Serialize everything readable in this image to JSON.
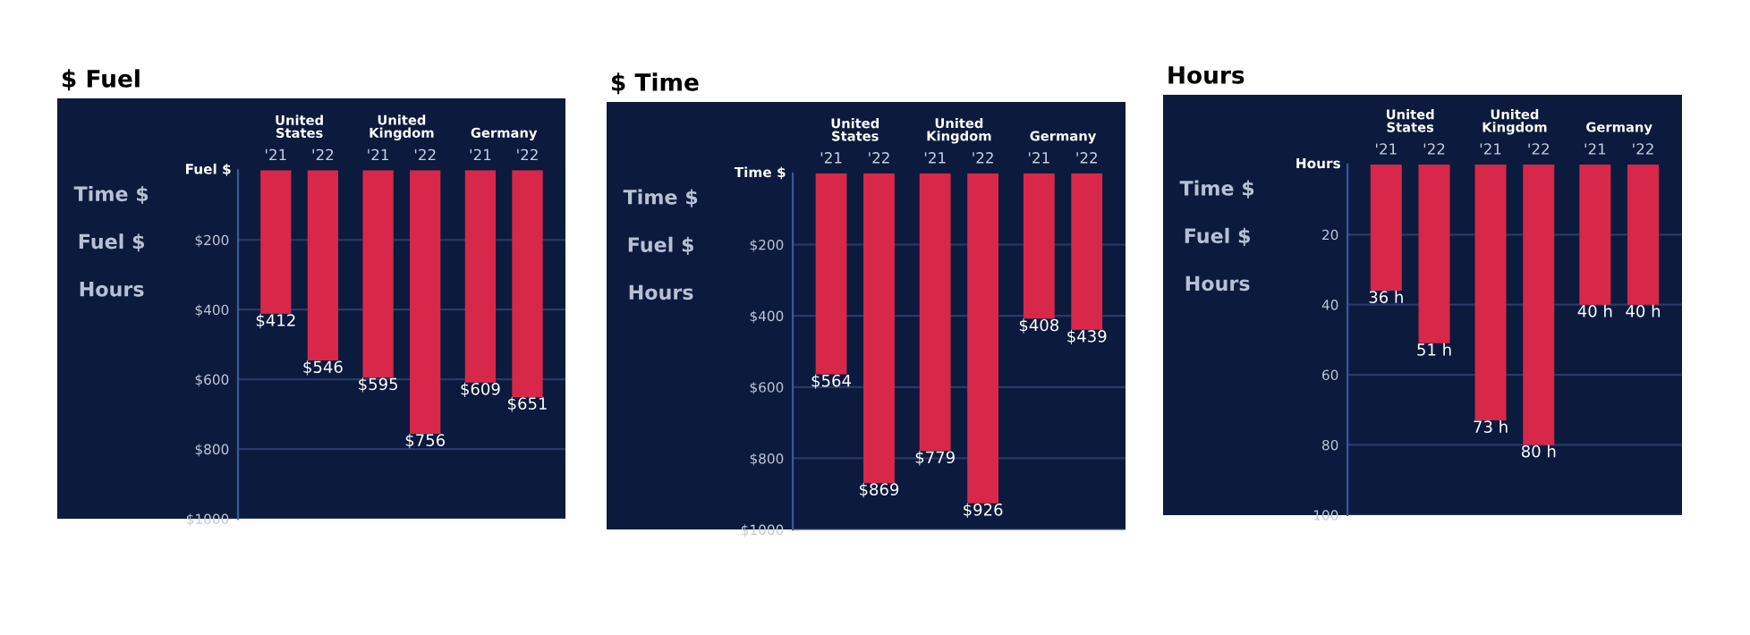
{
  "chart_data": [
    {
      "type": "bar",
      "title": "$ Fuel",
      "ylabel": "Fuel $",
      "categories": [
        "United States",
        "United Kingdom",
        "Germany"
      ],
      "series": [
        {
          "name": "'21",
          "color": "#d8284a",
          "values": [
            412,
            595,
            609
          ],
          "value_labels": [
            "$412",
            "$595",
            "$609"
          ]
        },
        {
          "name": "'22",
          "color": "#d8284a",
          "values": [
            546,
            756,
            651
          ],
          "value_labels": [
            "$546",
            "$756",
            "$651"
          ]
        }
      ],
      "ylim": [
        1000,
        0
      ],
      "yticks": [
        {
          "value": 200,
          "label": "$200"
        },
        {
          "value": 400,
          "label": "$400"
        },
        {
          "value": 600,
          "label": "$600"
        },
        {
          "value": 800,
          "label": "$800"
        },
        {
          "value": 1000,
          "label": "$1000"
        }
      ],
      "grid": "y",
      "annotations": [
        "Time $",
        "Fuel $",
        "Hours"
      ]
    },
    {
      "type": "bar",
      "title": "$ Time",
      "ylabel": "Time $",
      "categories": [
        "United States",
        "United Kingdom",
        "Germany"
      ],
      "series": [
        {
          "name": "'21",
          "color": "#d8284a",
          "values": [
            564,
            779,
            408
          ],
          "value_labels": [
            "$564",
            "$779",
            "$408"
          ]
        },
        {
          "name": "'22",
          "color": "#d8284a",
          "values": [
            869,
            926,
            439
          ],
          "value_labels": [
            "$869",
            "$926",
            "$439"
          ]
        }
      ],
      "ylim": [
        1000,
        0
      ],
      "yticks": [
        {
          "value": 200,
          "label": "$200"
        },
        {
          "value": 400,
          "label": "$400"
        },
        {
          "value": 600,
          "label": "$600"
        },
        {
          "value": 800,
          "label": "$800"
        },
        {
          "value": 1000,
          "label": "$1000"
        }
      ],
      "grid": "y",
      "annotations": [
        "Time $",
        "Fuel $",
        "Hours"
      ]
    },
    {
      "type": "bar",
      "title": "Hours",
      "ylabel": "Hours",
      "categories": [
        "United States",
        "United Kingdom",
        "Germany"
      ],
      "series": [
        {
          "name": "'21",
          "color": "#d8284a",
          "values": [
            36,
            73,
            40
          ],
          "value_labels": [
            "36 h",
            "73 h",
            "40 h"
          ]
        },
        {
          "name": "'22",
          "color": "#d8284a",
          "values": [
            51,
            80,
            40
          ],
          "value_labels": [
            "51 h",
            "80 h",
            "40 h"
          ]
        }
      ],
      "ylim": [
        100,
        0
      ],
      "yticks": [
        20,
        40,
        60,
        80,
        100
      ],
      "grid": "y",
      "annotations": [
        "Time $",
        "Fuel $",
        "Hours"
      ]
    }
  ]
}
